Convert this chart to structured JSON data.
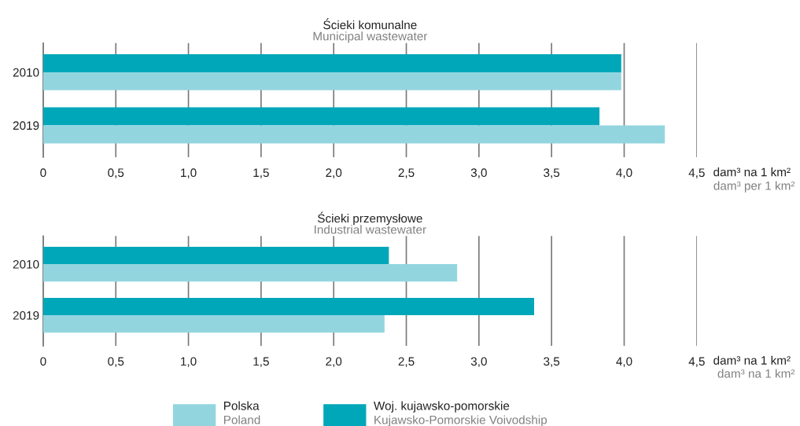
{
  "chart_data": [
    {
      "type": "bar",
      "orientation": "horizontal",
      "title": "Ścieki komunalne",
      "subtitle": "Municipal wastewater",
      "categories": [
        "2010",
        "2019"
      ],
      "series": [
        {
          "color": "#00a7b9",
          "values": [
            3.98,
            3.83
          ]
        },
        {
          "color": "#93d5df",
          "values": [
            3.98,
            4.28
          ]
        }
      ],
      "xlim": [
        0,
        4.5
      ],
      "xticks": [
        0,
        {
          "value": 0.5,
          "label": "0,5"
        },
        {
          "value": 1,
          "label": "1,0"
        },
        {
          "value": 1.5,
          "label": "1,5"
        },
        {
          "value": 2,
          "label": "2,0"
        },
        {
          "value": 2.5,
          "label": "2,5"
        },
        {
          "value": 3,
          "label": "3,0"
        },
        {
          "value": 3.5,
          "label": "3,5"
        },
        {
          "value": 4,
          "label": "4,0"
        },
        {
          "value": 4.5,
          "label": "4,5"
        }
      ],
      "xlabel": "dam³ na 1 km²",
      "annotations": [
        "dam³ per 1 km²"
      ],
      "grid": "x"
    },
    {
      "type": "bar",
      "orientation": "horizontal",
      "title": "Ścieki przemysłowe",
      "subtitle": "Industrial wastewater",
      "categories": [
        "2010",
        "2019"
      ],
      "series": [
        {
          "name": "Woj. kujawsko-pomorskie\nKujawsko-Pomorskie Voivodship",
          "color": "#00a7b9",
          "values": [
            2.38,
            3.38
          ]
        },
        {
          "name": "Polska\nPoland",
          "color": "#93d5df",
          "values": [
            2.85,
            2.35
          ]
        }
      ],
      "xlim": [
        0,
        4.5
      ],
      "xticks": [
        0,
        {
          "value": 0.5,
          "label": "0,5"
        },
        {
          "value": 1,
          "label": "1,0"
        },
        {
          "value": 1.5,
          "label": "1,5"
        },
        {
          "value": 2,
          "label": "2,0"
        },
        {
          "value": 2.5,
          "label": "2,5"
        },
        {
          "value": 3,
          "label": "3,0"
        },
        {
          "value": 3.5,
          "label": "3,5"
        },
        {
          "value": 4,
          "label": "4,0"
        },
        {
          "value": 4.5,
          "label": "4,5"
        }
      ],
      "xlabel": "dam³ na 1 km²",
      "annotations": [
        "dam³ na 1 km²"
      ],
      "grid": "x",
      "legend": "bottom"
    }
  ]
}
